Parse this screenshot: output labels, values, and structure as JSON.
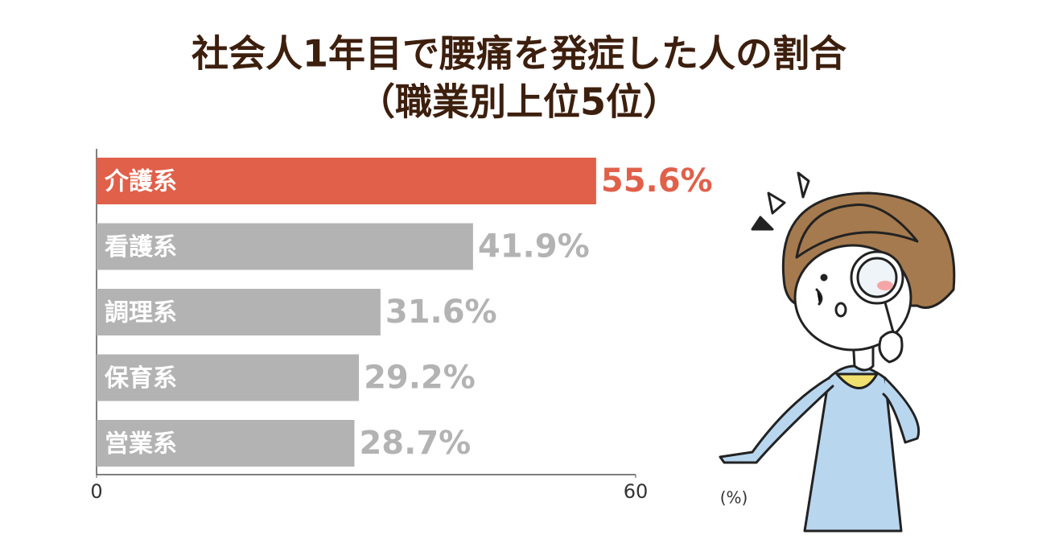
{
  "chart_data": {
    "type": "hbar",
    "title": "社会人1年目で腰痛を発症した人の割合",
    "subtitle": "（職業別上位5位）",
    "categories": [
      "介護系",
      "看護系",
      "調理系",
      "保育系",
      "営業系"
    ],
    "values": [
      55.6,
      41.9,
      31.6,
      29.2,
      28.7
    ],
    "value_labels": [
      "55.6%",
      "41.9%",
      "31.6%",
      "29.2%",
      "28.7%"
    ],
    "colors": [
      "#e0604a",
      "#b3b3b3",
      "#b3b3b3",
      "#b3b3b3",
      "#b3b3b3"
    ],
    "xlim": [
      0,
      60
    ],
    "xticks": [
      0,
      60
    ],
    "xlabel": "(%)"
  }
}
